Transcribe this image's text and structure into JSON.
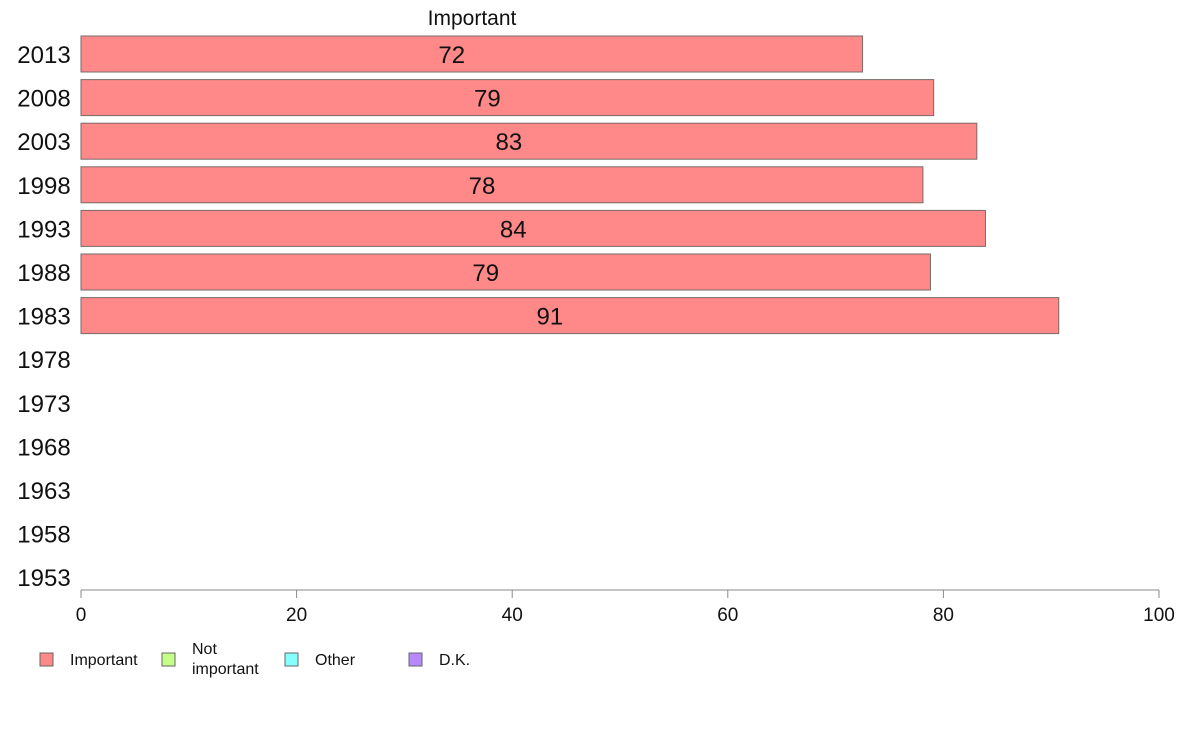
{
  "chart_data": {
    "type": "bar",
    "orientation": "horizontal",
    "stacked": true,
    "series_title": "Important",
    "categories": [
      "2013",
      "2008",
      "2003",
      "1998",
      "1993",
      "1988",
      "1983",
      "1978",
      "1973",
      "1968",
      "1963",
      "1958",
      "1953"
    ],
    "series": [
      {
        "name": "Important",
        "color": "#ff8888",
        "values": [
          72.5,
          79.1,
          83.1,
          78.1,
          83.9,
          78.8,
          90.7,
          null,
          null,
          null,
          null,
          null,
          null
        ],
        "labels": [
          "72",
          "79",
          "83",
          "78",
          "84",
          "79",
          "91",
          "",
          "",
          "",
          "",
          "",
          ""
        ]
      },
      {
        "name": "Not important",
        "color": "#c4ff88",
        "values": [
          null,
          null,
          null,
          null,
          null,
          null,
          null,
          null,
          null,
          null,
          null,
          null,
          null
        ],
        "labels": [
          "",
          "",
          "",
          "",
          "",
          "",
          "",
          "",
          "",
          "",
          "",
          "",
          ""
        ]
      },
      {
        "name": "Other",
        "color": "#88ffff",
        "values": [
          null,
          null,
          null,
          null,
          null,
          null,
          null,
          null,
          null,
          null,
          null,
          null,
          null
        ],
        "labels": [
          "",
          "",
          "",
          "",
          "",
          "",
          "",
          "",
          "",
          "",
          "",
          "",
          ""
        ]
      },
      {
        "name": "D.K.",
        "color": "#b888ff",
        "values": [
          null,
          null,
          null,
          null,
          null,
          null,
          null,
          null,
          null,
          null,
          null,
          null,
          null
        ],
        "labels": [
          "",
          "",
          "",
          "",
          "",
          "",
          "",
          "",
          "",
          "",
          "",
          "",
          ""
        ]
      }
    ],
    "xlim": [
      0,
      100
    ],
    "xticks": [
      "0",
      "20",
      "40",
      "60",
      "80",
      "100"
    ],
    "grid": false,
    "legend_position": "bottom-left",
    "legend_labels": [
      [
        "Important"
      ],
      [
        "Not",
        "important"
      ],
      [
        "Other"
      ],
      [
        "D.K."
      ]
    ]
  }
}
